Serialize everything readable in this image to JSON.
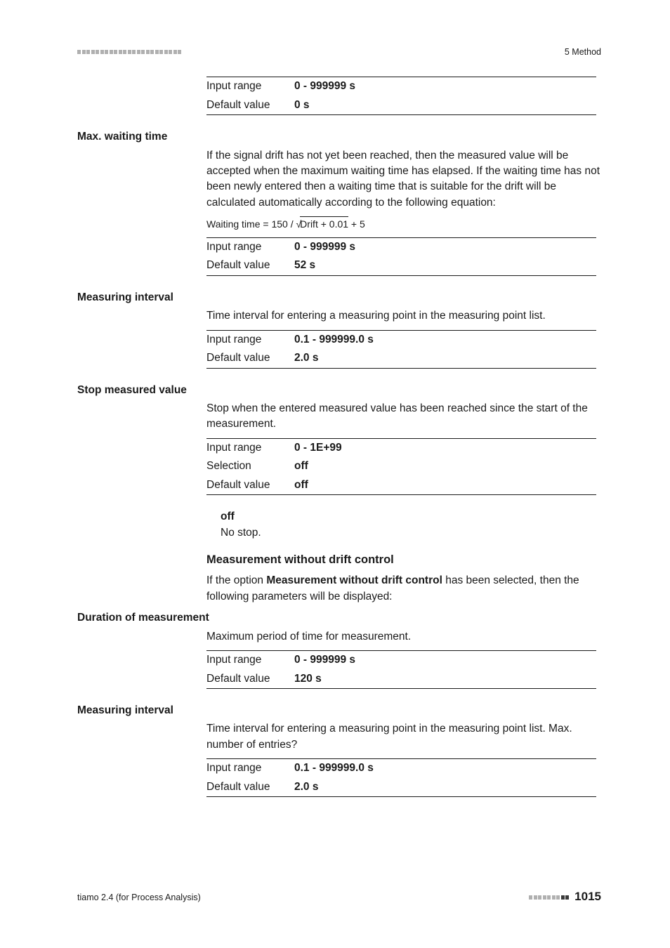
{
  "header": {
    "chapter": "5 Method"
  },
  "params": {
    "p0": {
      "input_range_label": "Input range",
      "input_range": "0 - 999999 s",
      "default_label": "Default value",
      "default": "0 s"
    },
    "max_waiting_time": {
      "title": "Max. waiting time",
      "body": "If the signal drift has not yet been reached, then the measured value will be accepted when the maximum waiting time has elapsed. If the waiting time has not been newly entered then a waiting time that is suitable for the drift will be calculated automatically according to the following equation:",
      "formula_prefix": "Waiting time = 150 / √",
      "formula_sqrt": "Drift + 0.01",
      "formula_suffix": " + 5",
      "input_range_label": "Input range",
      "input_range": "0 - 999999 s",
      "default_label": "Default value",
      "default": "52 s"
    },
    "measuring_interval1": {
      "title": "Measuring interval",
      "body": "Time interval for entering a measuring point in the measuring point list.",
      "input_range_label": "Input range",
      "input_range": "0.1 - 999999.0 s",
      "default_label": "Default value",
      "default": "2.0 s"
    },
    "stop_measured_value": {
      "title": "Stop measured value",
      "body": "Stop when the entered measured value has been reached since the start of the measurement.",
      "input_range_label": "Input range",
      "input_range": "0 - 1E+99",
      "selection_label": "Selection",
      "selection": "off",
      "default_label": "Default value",
      "default": "off",
      "sub_title": "off",
      "sub_body": "No stop."
    },
    "mwdc": {
      "heading": "Measurement without drift control",
      "body_pre": "If the option ",
      "body_bold": "Measurement without drift control",
      "body_post": " has been selected, then the following parameters will be displayed:"
    },
    "duration": {
      "title": "Duration of measurement",
      "body": "Maximum period of time for measurement.",
      "input_range_label": "Input range",
      "input_range": "0 - 999999 s",
      "default_label": "Default value",
      "default": "120 s"
    },
    "measuring_interval2": {
      "title": "Measuring interval",
      "body": "Time interval for entering a measuring point in the measuring point list. Max. number of entries?",
      "input_range_label": "Input range",
      "input_range": "0.1 - 999999.0 s",
      "default_label": "Default value",
      "default": "2.0 s"
    }
  },
  "footer": {
    "left": "tiamo 2.4 (for Process Analysis)",
    "page": "1015"
  }
}
